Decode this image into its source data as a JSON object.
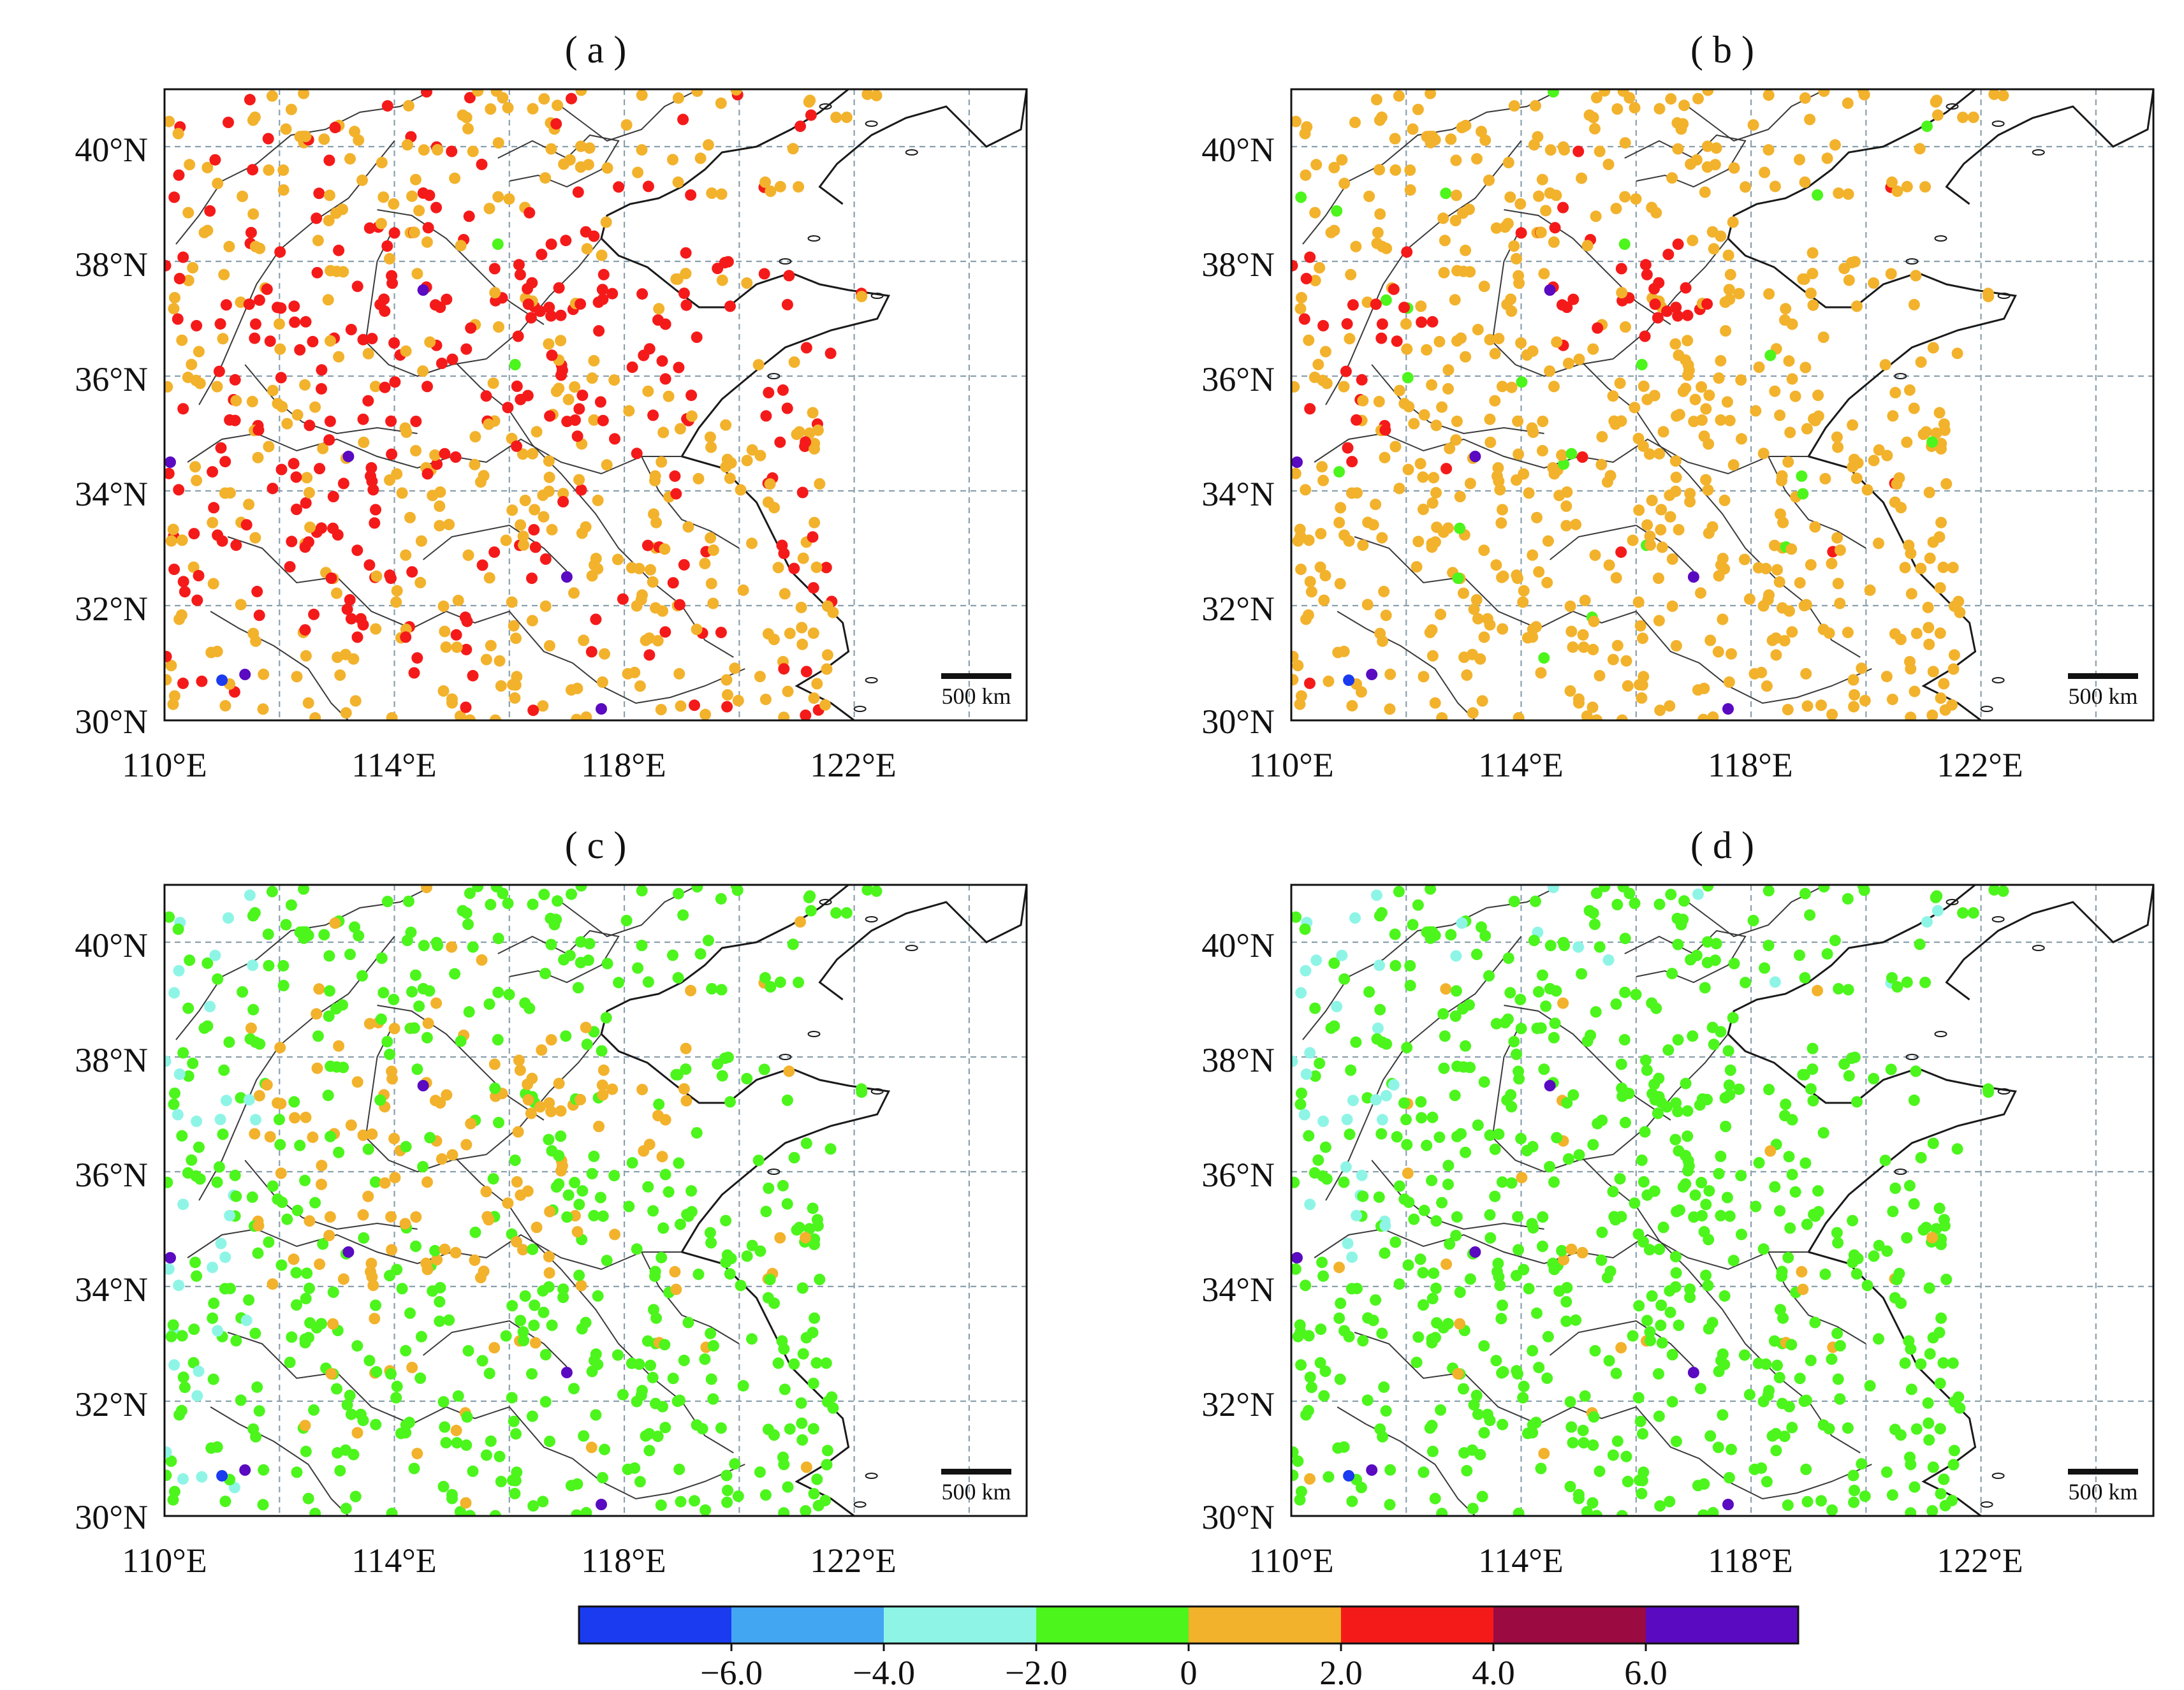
{
  "panels": [
    {
      "label": "( a )",
      "dist": "warm",
      "scale_label": "500 km"
    },
    {
      "label": "( b )",
      "dist": "orange",
      "scale_label": "500 km"
    },
    {
      "label": "( c )",
      "dist": "mixed",
      "scale_label": "500 km"
    },
    {
      "label": "( d )",
      "dist": "green",
      "scale_label": "500 km"
    }
  ],
  "axes": {
    "x_ticks": [
      "110°E",
      "114°E",
      "118°E",
      "122°E"
    ],
    "y_ticks": [
      "40°N",
      "38°N",
      "36°N",
      "34°N",
      "32°N",
      "30°N"
    ],
    "x_range": [
      110,
      125
    ],
    "y_range": [
      30,
      41
    ],
    "grid": true
  },
  "colorbar": {
    "colors": [
      "#1a3bf0",
      "#43a6f2",
      "#8ef5e6",
      "#4cf51c",
      "#f2b22c",
      "#f51a1a",
      "#9b0a40",
      "#5a0ac0"
    ],
    "tick_labels": [
      "−6.0",
      "−4.0",
      "−2.0",
      "0",
      "2.0",
      "4.0",
      "6.0"
    ],
    "bins": [
      [
        -8,
        -6
      ],
      [
        -6,
        -4
      ],
      [
        -4,
        -2
      ],
      [
        -2,
        0
      ],
      [
        0,
        2
      ],
      [
        2,
        4
      ],
      [
        4,
        6
      ],
      [
        6,
        8
      ]
    ]
  }
}
